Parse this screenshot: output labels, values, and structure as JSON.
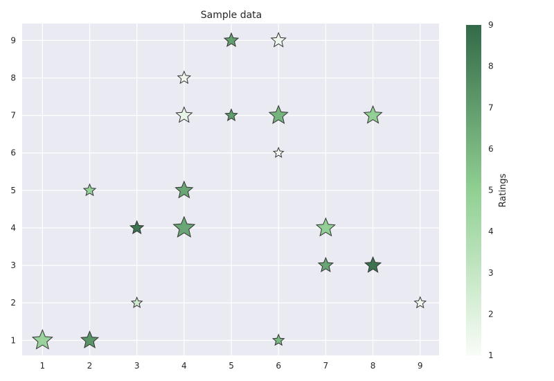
{
  "chart_data": {
    "type": "scatter",
    "title": "Sample data",
    "xlabel": "",
    "ylabel": "",
    "xlim": [
      0.57,
      9.4
    ],
    "ylim": [
      0.6,
      9.45
    ],
    "xticks": [
      "1",
      "2",
      "3",
      "4",
      "5",
      "6",
      "7",
      "8",
      "9"
    ],
    "yticks": [
      "1",
      "2",
      "3",
      "4",
      "5",
      "6",
      "7",
      "8",
      "9"
    ],
    "grid": true,
    "marker": "star",
    "colormap": "Greens",
    "colorbar": {
      "label": "Ratings",
      "range": [
        1,
        9
      ],
      "ticks": [
        "1",
        "2",
        "3",
        "4",
        "5",
        "6",
        "7",
        "8",
        "9"
      ]
    },
    "colors": {
      "background": "#eaeaf2",
      "grid": "#ffffff",
      "marker_edge": "#333333",
      "cmap_low": "#f7fcf5",
      "cmap_mid": "#74c476",
      "cmap_high": "#00441b"
    },
    "points": [
      {
        "x": 1,
        "y": 1,
        "rating": 4.5,
        "size": 30
      },
      {
        "x": 2,
        "y": 1,
        "rating": 7.2,
        "size": 26
      },
      {
        "x": 2,
        "y": 5,
        "rating": 4.7,
        "size": 18
      },
      {
        "x": 3,
        "y": 2,
        "rating": 2.5,
        "size": 16
      },
      {
        "x": 3,
        "y": 4,
        "rating": 8.5,
        "size": 20
      },
      {
        "x": 4,
        "y": 4,
        "rating": 6.5,
        "size": 32
      },
      {
        "x": 4,
        "y": 5,
        "rating": 6.5,
        "size": 26
      },
      {
        "x": 4,
        "y": 7,
        "rating": 1.5,
        "size": 24
      },
      {
        "x": 4,
        "y": 8,
        "rating": 1.3,
        "size": 19
      },
      {
        "x": 5,
        "y": 7,
        "rating": 7.0,
        "size": 18
      },
      {
        "x": 5,
        "y": 9,
        "rating": 6.8,
        "size": 21
      },
      {
        "x": 6,
        "y": 1,
        "rating": 5.8,
        "size": 17
      },
      {
        "x": 6,
        "y": 6,
        "rating": 1.0,
        "size": 15
      },
      {
        "x": 6,
        "y": 7,
        "rating": 6.0,
        "size": 28
      },
      {
        "x": 6,
        "y": 9,
        "rating": 1.3,
        "size": 22
      },
      {
        "x": 7,
        "y": 3,
        "rating": 6.6,
        "size": 22
      },
      {
        "x": 7,
        "y": 4,
        "rating": 4.8,
        "size": 28
      },
      {
        "x": 8,
        "y": 3,
        "rating": 8.5,
        "size": 24
      },
      {
        "x": 8,
        "y": 7,
        "rating": 4.8,
        "size": 27
      },
      {
        "x": 9,
        "y": 2,
        "rating": 1.3,
        "size": 17
      }
    ]
  }
}
